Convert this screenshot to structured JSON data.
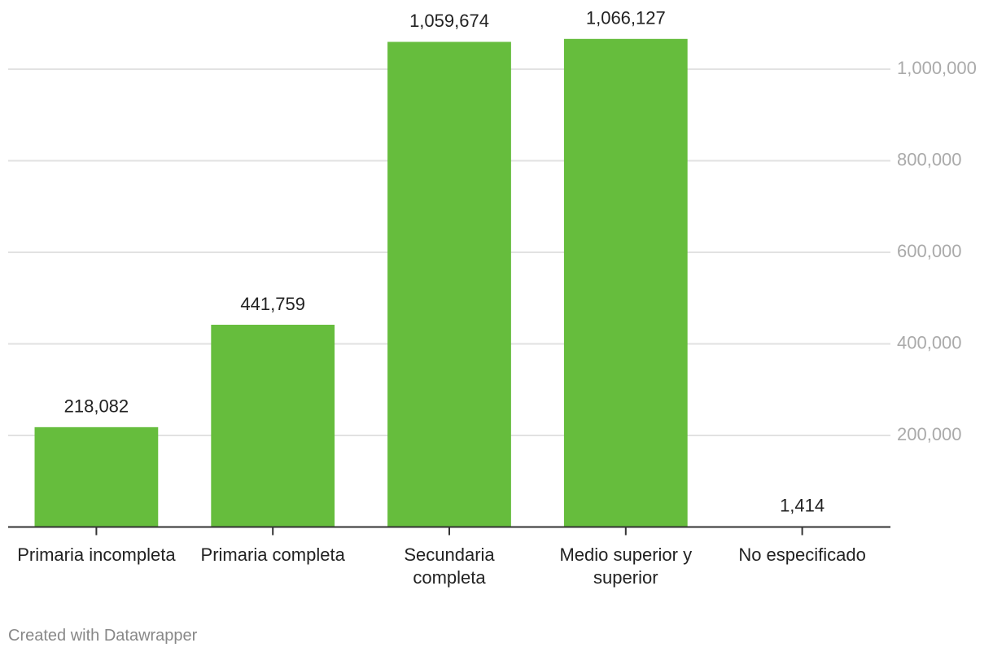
{
  "chart_data": {
    "type": "bar",
    "categories": [
      "Primaria incompleta",
      "Primaria completa",
      "Secundaria completa",
      "Medio superior y superior",
      "No especificado"
    ],
    "values": [
      218082,
      441759,
      1059674,
      1066127,
      1414
    ],
    "value_labels": [
      "218,082",
      "441,759",
      "1,059,674",
      "1,066,127",
      "1,414"
    ],
    "color": "#66bd3d",
    "ylim": [
      0,
      1100000
    ],
    "yticks": [
      {
        "value": 200000,
        "label": "200,000"
      },
      {
        "value": 400000,
        "label": "400,000"
      },
      {
        "value": 600000,
        "label": "600,000"
      },
      {
        "value": 800000,
        "label": "800,000"
      },
      {
        "value": 1000000,
        "label": "1,000,000"
      }
    ],
    "grid": true,
    "y_axis_side": "right",
    "footer": "Created with Datawrapper"
  }
}
